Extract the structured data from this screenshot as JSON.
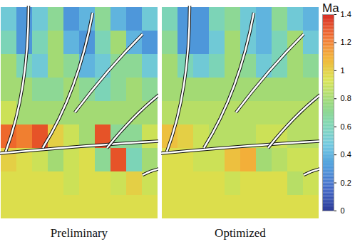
{
  "chart_data": {
    "type": "heatmap",
    "panels": [
      {
        "title": "Preliminary",
        "cells": [
          [
            0.5,
            0.3,
            0.5,
            0.7,
            0.3,
            0.4,
            0.7,
            0.4,
            0.3,
            0.5
          ],
          [
            0.6,
            0.3,
            0.6,
            0.8,
            0.4,
            0.3,
            0.6,
            0.8,
            0.4,
            0.3
          ],
          [
            0.8,
            0.6,
            0.5,
            0.8,
            0.7,
            0.4,
            0.5,
            0.7,
            0.7,
            0.5
          ],
          [
            0.8,
            0.8,
            0.7,
            0.7,
            0.8,
            0.7,
            0.6,
            0.7,
            0.8,
            0.7
          ],
          [
            0.9,
            0.8,
            0.8,
            0.8,
            0.8,
            0.8,
            0.8,
            0.8,
            0.8,
            0.8
          ],
          [
            1.25,
            1.2,
            1.3,
            1.0,
            0.9,
            0.8,
            1.3,
            0.7,
            0.7,
            0.9
          ],
          [
            1.0,
            0.95,
            0.9,
            0.8,
            0.9,
            0.95,
            0.7,
            1.3,
            0.6,
            0.8
          ],
          [
            0.95,
            0.95,
            0.95,
            0.95,
            0.9,
            0.95,
            0.95,
            0.9,
            1.0,
            0.9
          ],
          [
            0.95,
            0.95,
            0.95,
            0.95,
            0.95,
            0.95,
            0.95,
            0.95,
            0.95,
            0.95
          ]
        ]
      },
      {
        "title": "Optimized",
        "cells": [
          [
            0.6,
            0.3,
            0.3,
            0.6,
            0.7,
            0.5,
            0.4,
            0.7,
            0.5,
            0.4
          ],
          [
            0.7,
            0.3,
            0.3,
            0.5,
            0.8,
            0.5,
            0.4,
            0.6,
            0.8,
            0.5
          ],
          [
            0.8,
            0.6,
            0.5,
            0.6,
            0.8,
            0.7,
            0.5,
            0.6,
            0.8,
            0.7
          ],
          [
            0.8,
            0.8,
            0.8,
            0.8,
            0.8,
            0.8,
            0.8,
            0.8,
            0.8,
            0.8
          ],
          [
            0.85,
            0.85,
            0.85,
            0.85,
            0.85,
            0.85,
            0.85,
            0.85,
            0.85,
            0.85
          ],
          [
            1.05,
            1.0,
            0.9,
            0.85,
            0.85,
            0.85,
            0.9,
            0.9,
            0.85,
            0.85
          ],
          [
            0.95,
            0.95,
            0.9,
            0.9,
            1.05,
            1.1,
            0.8,
            0.85,
            0.9,
            0.9
          ],
          [
            0.95,
            0.95,
            0.95,
            0.95,
            0.9,
            0.95,
            0.95,
            0.95,
            0.85,
            0.9
          ],
          [
            0.95,
            0.95,
            0.95,
            0.95,
            0.95,
            0.95,
            0.95,
            0.95,
            0.95,
            0.95
          ]
        ]
      }
    ],
    "colorbar": {
      "title": "Ma",
      "range": [
        0,
        1.4
      ],
      "ticks": [
        0,
        0.2,
        0.4,
        0.6,
        0.8,
        1,
        1.2,
        1.4
      ],
      "colors": [
        "#2b3a98",
        "#3c62c4",
        "#4f9bdc",
        "#6cc6e0",
        "#7fd6b0",
        "#9ad97a",
        "#d9e34e",
        "#f3b43a",
        "#ef6a2c",
        "#d62a22"
      ]
    }
  }
}
